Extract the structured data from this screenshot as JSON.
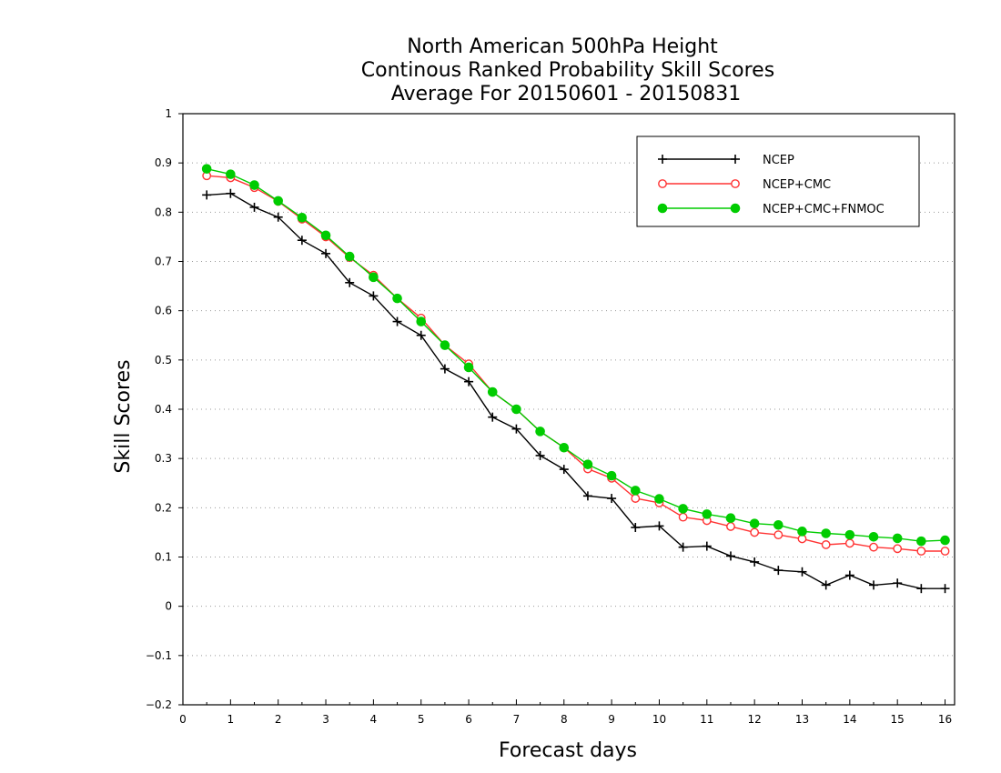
{
  "chart_data": {
    "type": "line",
    "title_lines": [
      "North American 500hPa Height",
      "Continous Ranked Probability Skill Scores",
      "Average For 20150601 - 20150831"
    ],
    "xlabel": "Forecast days",
    "ylabel": "Skill Scores",
    "xlim": [
      0,
      16.2
    ],
    "ylim": [
      -0.2,
      1.0
    ],
    "x_ticks": [
      0,
      1,
      2,
      3,
      4,
      5,
      6,
      7,
      8,
      9,
      10,
      11,
      12,
      13,
      14,
      15,
      16
    ],
    "x_tick_labels": [
      "0",
      "1",
      "2",
      "3",
      "4",
      "5",
      "6",
      "7",
      "8",
      "9",
      "10",
      "11",
      "12",
      "13",
      "14",
      "15",
      "16"
    ],
    "y_ticks": [
      -0.2,
      -0.1,
      0,
      0.1,
      0.2,
      0.3,
      0.4,
      0.5,
      0.6,
      0.7,
      0.8,
      0.9,
      1
    ],
    "y_tick_labels": [
      "−0.2",
      "−0.1",
      "0",
      "0.1",
      "0.2",
      "0.3",
      "0.4",
      "0.5",
      "0.6",
      "0.7",
      "0.8",
      "0.9",
      "1"
    ],
    "grid": "horizontal dotted",
    "legend_position": "top-right",
    "x": [
      0.5,
      1,
      1.5,
      2,
      2.5,
      3,
      3.5,
      4,
      4.5,
      5,
      5.5,
      6,
      6.5,
      7,
      7.5,
      8,
      8.5,
      9,
      9.5,
      10,
      10.5,
      11,
      11.5,
      12,
      12.5,
      13,
      13.5,
      14,
      14.5,
      15,
      15.5,
      16
    ],
    "series": [
      {
        "name": "NCEP",
        "color": "#000000",
        "marker": "plus",
        "values": [
          0.835,
          0.838,
          0.81,
          0.79,
          0.743,
          0.716,
          0.657,
          0.63,
          0.578,
          0.55,
          0.482,
          0.456,
          0.384,
          0.36,
          0.306,
          0.278,
          0.224,
          0.219,
          0.16,
          0.163,
          0.12,
          0.122,
          0.102,
          0.09,
          0.073,
          0.07,
          0.043,
          0.063,
          0.043,
          0.047,
          0.036,
          0.036
        ]
      },
      {
        "name": "NCEP+CMC",
        "color": "#ff3333",
        "marker": "open-circle",
        "values": [
          0.874,
          0.87,
          0.85,
          0.822,
          0.786,
          0.75,
          0.708,
          0.672,
          0.625,
          0.585,
          0.53,
          0.492,
          0.435,
          0.4,
          0.355,
          0.322,
          0.279,
          0.26,
          0.219,
          0.21,
          0.181,
          0.174,
          0.162,
          0.15,
          0.145,
          0.137,
          0.125,
          0.128,
          0.12,
          0.117,
          0.112,
          0.112
        ]
      },
      {
        "name": "NCEP+CMC+FNMOC",
        "color": "#00cc00",
        "marker": "filled-circle",
        "values": [
          0.888,
          0.877,
          0.855,
          0.823,
          0.789,
          0.753,
          0.71,
          0.668,
          0.625,
          0.578,
          0.53,
          0.485,
          0.435,
          0.4,
          0.355,
          0.322,
          0.288,
          0.265,
          0.235,
          0.218,
          0.198,
          0.187,
          0.179,
          0.168,
          0.165,
          0.152,
          0.148,
          0.145,
          0.141,
          0.138,
          0.132,
          0.134
        ]
      }
    ]
  }
}
